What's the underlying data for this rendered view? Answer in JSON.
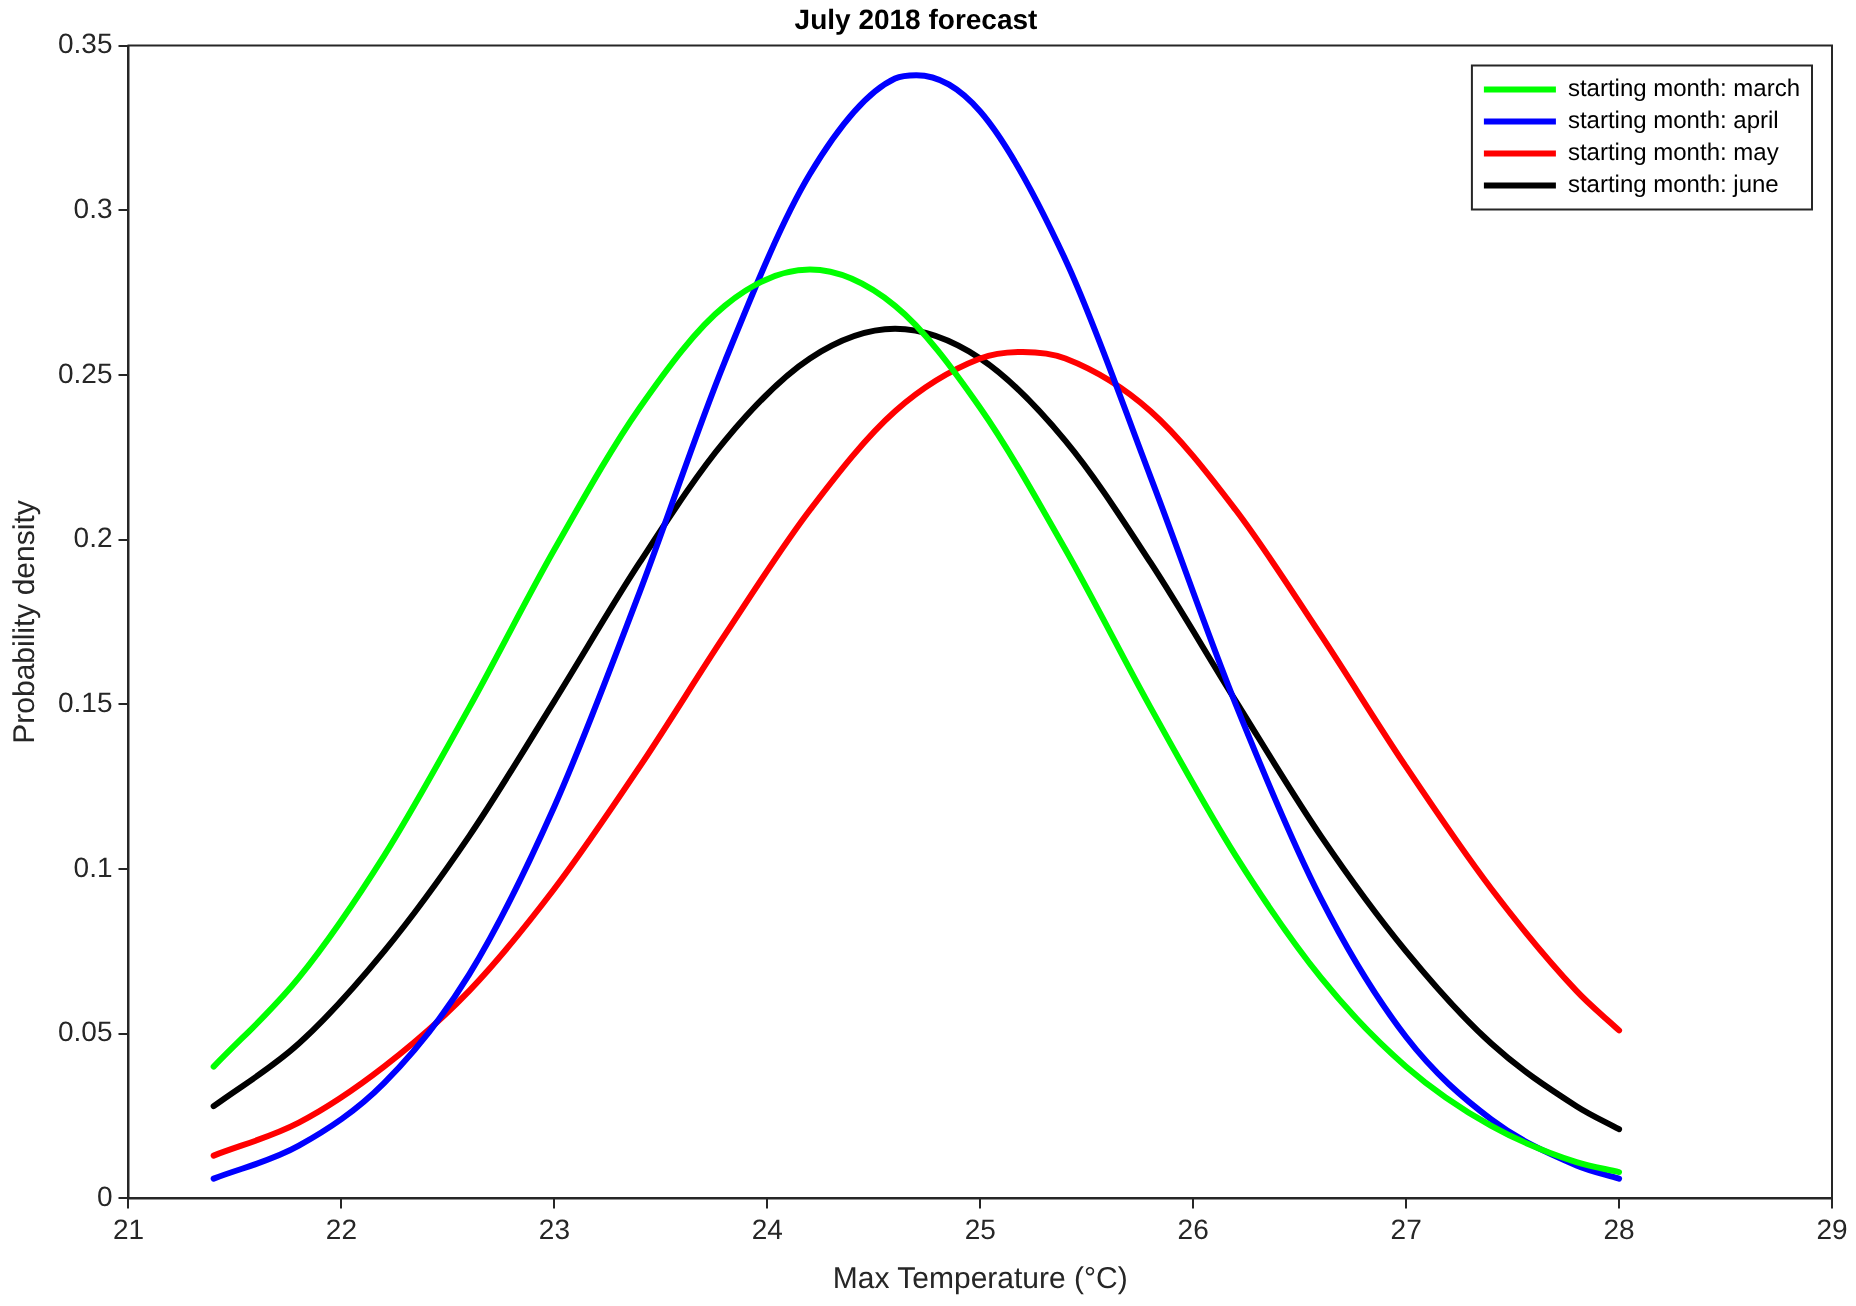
{
  "chart_data": {
    "type": "line",
    "title": "July 2018 forecast",
    "xlabel": "Max Temperature (°C)",
    "ylabel": "Probability density",
    "x": [
      21.4,
      21.8,
      22.2,
      22.6,
      23.0,
      23.4,
      23.8,
      24.2,
      24.6,
      25.0,
      25.4,
      25.8,
      26.2,
      26.6,
      27.0,
      27.4,
      27.8,
      28.0
    ],
    "series": [
      {
        "name": "starting month: march",
        "color": "#00ff00",
        "values": [
          0.04,
          0.067,
          0.104,
          0.149,
          0.197,
          0.24,
          0.271,
          0.282,
          0.271,
          0.24,
          0.197,
          0.149,
          0.104,
          0.067,
          0.04,
          0.022,
          0.011,
          0.008
        ]
      },
      {
        "name": "starting month: april",
        "color": "#0000ff",
        "x": [
          21.4,
          21.8,
          22.2,
          22.6,
          23.0,
          23.4,
          23.8,
          24.2,
          24.6,
          24.7,
          25.0,
          25.4,
          25.8,
          26.2,
          26.6,
          27.0,
          27.4,
          27.8,
          28.0
        ],
        "values": [
          0.006,
          0.016,
          0.035,
          0.068,
          0.119,
          0.184,
          0.254,
          0.311,
          0.34,
          0.341,
          0.33,
          0.285,
          0.219,
          0.15,
          0.091,
          0.049,
          0.024,
          0.01,
          0.006
        ]
      },
      {
        "name": "starting month: may",
        "color": "#ff0000",
        "x": [
          21.4,
          21.8,
          22.2,
          22.6,
          23.0,
          23.4,
          23.8,
          24.2,
          24.6,
          25.0,
          25.2,
          25.4,
          25.8,
          26.2,
          26.6,
          27.0,
          27.4,
          27.8,
          28.0
        ],
        "values": [
          0.013,
          0.023,
          0.04,
          0.063,
          0.094,
          0.131,
          0.171,
          0.209,
          0.239,
          0.255,
          0.257,
          0.255,
          0.239,
          0.209,
          0.171,
          0.131,
          0.094,
          0.063,
          0.051
        ]
      },
      {
        "name": "starting month: june",
        "color": "#000000",
        "values": [
          0.028,
          0.047,
          0.075,
          0.11,
          0.151,
          0.193,
          0.23,
          0.255,
          0.264,
          0.255,
          0.23,
          0.193,
          0.151,
          0.11,
          0.075,
          0.047,
          0.028,
          0.021
        ]
      }
    ],
    "xlim": [
      21,
      29
    ],
    "xticks": [
      21,
      22,
      23,
      24,
      25,
      26,
      27,
      28,
      29
    ],
    "ylim": [
      0,
      0.35
    ],
    "yticks": [
      0,
      0.05,
      0.1,
      0.15,
      0.2,
      0.25,
      0.3,
      0.35
    ],
    "grid": false,
    "legend": "top right",
    "marker": "none",
    "line_style": "solid"
  }
}
